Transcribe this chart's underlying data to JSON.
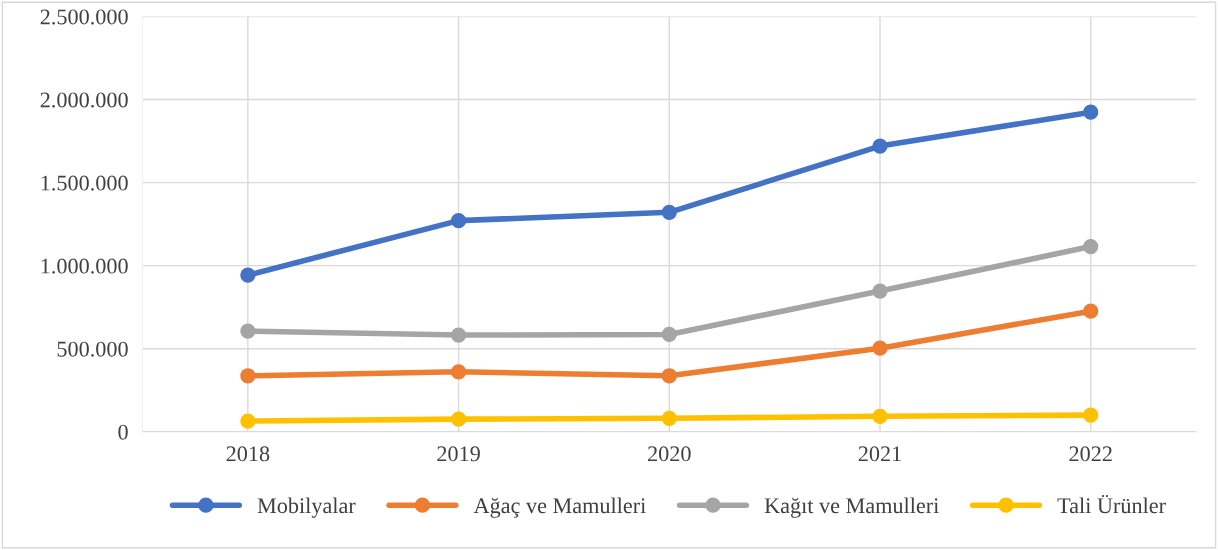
{
  "chart_data": {
    "type": "line",
    "categories": [
      "2018",
      "2019",
      "2020",
      "2021",
      "2022"
    ],
    "series": [
      {
        "name": "Mobilyalar",
        "color": "#4472c4",
        "values": [
          943000,
          1271000,
          1321000,
          1720000,
          1924000
        ]
      },
      {
        "name": "Ağaç ve Mamulleri",
        "color": "#ed7d31",
        "values": [
          337000,
          361000,
          337000,
          503000,
          726000
        ]
      },
      {
        "name": "Kağıt ve Mamulleri",
        "color": "#a5a5a5",
        "values": [
          606000,
          582000,
          586000,
          847000,
          1115000
        ]
      },
      {
        "name": "Tali Ürünler",
        "color": "#ffc000",
        "values": [
          64000,
          76000,
          81000,
          93000,
          100000
        ]
      }
    ],
    "ylim": [
      0,
      2500000
    ],
    "yticks": [
      0,
      {
        "value": 500000,
        "label": "500.000"
      },
      {
        "value": 1000000,
        "label": "1.000.000"
      },
      {
        "value": 1500000,
        "label": "1.500.000"
      },
      {
        "value": 2000000,
        "label": "2.000.000"
      },
      {
        "value": 2500000,
        "label": "2.500.000"
      }
    ],
    "grid": true,
    "legend": "bottom",
    "marker": "circle",
    "line_style": "solid"
  }
}
